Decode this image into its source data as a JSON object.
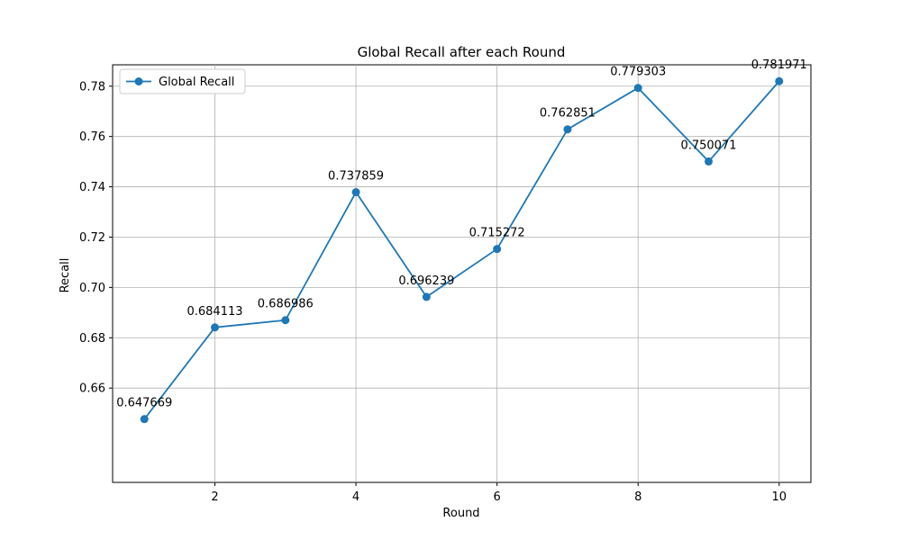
{
  "chart_data": {
    "type": "line",
    "title": "Global Recall after each Round",
    "xlabel": "Round",
    "ylabel": "Recall",
    "xlim": [
      0.55,
      10.45
    ],
    "ylim": [
      0.6225,
      0.7885
    ],
    "x_ticks": [
      2,
      4,
      6,
      8,
      10
    ],
    "y_ticks": [
      0.66,
      0.68,
      0.7,
      0.72,
      0.74,
      0.76,
      0.78
    ],
    "y_tick_labels": [
      "0.66",
      "0.68",
      "0.70",
      "0.72",
      "0.74",
      "0.76",
      "0.78"
    ],
    "grid": true,
    "legend_position": "upper-left",
    "series": [
      {
        "name": "Global Recall",
        "color": "#1f77b4",
        "x": [
          1,
          2,
          3,
          4,
          5,
          6,
          7,
          8,
          9,
          10
        ],
        "values": [
          0.647669,
          0.684113,
          0.686986,
          0.737859,
          0.696239,
          0.715272,
          0.762851,
          0.779303,
          0.750071,
          0.781971
        ],
        "labels": [
          "0.647669",
          "0.684113",
          "0.686986",
          "0.737859",
          "0.696239",
          "0.715272",
          "0.762851",
          "0.779303",
          "0.750071",
          "0.781971"
        ]
      }
    ]
  }
}
